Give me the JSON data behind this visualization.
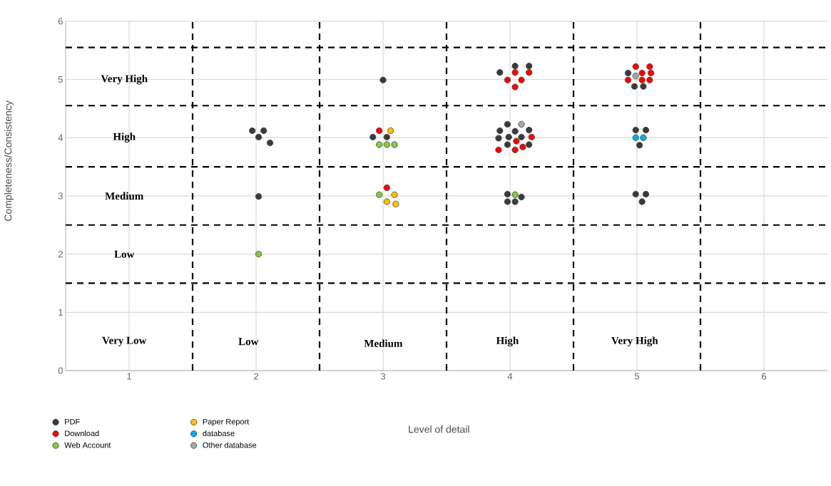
{
  "chart_data": {
    "type": "scatter",
    "xlabel": "Level of detail",
    "ylabel": "Completeness/Consistency",
    "xlim": [
      0.5,
      6.5
    ],
    "ylim": [
      0,
      6
    ],
    "xticks": [
      1,
      2,
      3,
      4,
      5,
      6
    ],
    "yticks": [
      0,
      1,
      2,
      3,
      4,
      5,
      6
    ],
    "grid": true,
    "legend": "bottom",
    "marker": "circle",
    "series": [
      {
        "name": "PDF",
        "color": "#3a3a3a",
        "x": [
          1.97,
          2.06,
          2.02,
          2.11,
          2.02,
          3.0,
          2.92,
          3.03,
          3.92,
          4.04,
          4.15,
          3.98,
          3.92,
          4.04,
          4.15,
          3.91,
          3.99,
          4.09,
          3.98,
          4.15,
          3.98,
          4.09,
          3.98,
          4.04,
          4.93,
          4.98,
          5.05,
          4.99,
          5.07,
          5.02,
          4.99,
          5.07,
          5.04
        ],
        "values": [
          4.12,
          4.12,
          4.01,
          3.91,
          2.99,
          4.99,
          4.01,
          4.01,
          5.12,
          5.23,
          5.23,
          4.23,
          4.12,
          4.11,
          4.13,
          3.99,
          4.01,
          4.01,
          3.88,
          3.88,
          3.03,
          2.98,
          2.9,
          2.9,
          5.11,
          4.88,
          4.88,
          4.13,
          4.13,
          3.87,
          3.03,
          3.03,
          2.9
        ]
      },
      {
        "name": "Download",
        "color": "#ff0000",
        "x": [
          2.97,
          3.03,
          4.04,
          4.15,
          3.98,
          4.09,
          4.04,
          4.17,
          4.05,
          3.91,
          4.04,
          4.1,
          4.99,
          5.1,
          5.04,
          5.11,
          4.93,
          5.04,
          5.1
        ],
        "values": [
          4.12,
          3.14,
          5.12,
          5.12,
          4.99,
          4.99,
          4.87,
          4.01,
          3.94,
          3.79,
          3.79,
          3.84,
          5.22,
          5.22,
          5.11,
          5.11,
          4.99,
          4.99,
          4.99
        ]
      },
      {
        "name": "Web Account",
        "color": "#8dc63f",
        "x": [
          2.02,
          2.97,
          3.03,
          3.09,
          2.97,
          4.04
        ],
        "values": [
          2.0,
          3.88,
          3.88,
          3.88,
          3.02,
          3.02
        ]
      },
      {
        "name": "Paper Report",
        "color": "#ffc000",
        "x": [
          3.06,
          3.09,
          3.03,
          3.1
        ],
        "values": [
          4.12,
          3.02,
          2.9,
          2.86
        ]
      },
      {
        "name": "database",
        "color": "#00b0f0",
        "x": [
          4.99,
          5.05
        ],
        "values": [
          4.0,
          4.0
        ]
      },
      {
        "name": "Other database",
        "color": "#a6a6a6",
        "x": [
          4.09,
          4.99
        ],
        "values": [
          4.23,
          5.06
        ]
      }
    ],
    "ref_lines": [
      {
        "axis": "y",
        "value": 5.55,
        "color": "#000000",
        "line_style": "dashed"
      },
      {
        "axis": "y",
        "value": 4.55,
        "color": "#000000",
        "line_style": "dashed"
      },
      {
        "axis": "y",
        "value": 3.5,
        "color": "#000000",
        "line_style": "dashed"
      },
      {
        "axis": "y",
        "value": 2.5,
        "color": "#000000",
        "line_style": "dashed"
      },
      {
        "axis": "y",
        "value": 1.5,
        "color": "#000000",
        "line_style": "dashed"
      },
      {
        "axis": "x",
        "value": 1.5,
        "color": "#000000",
        "line_style": "dashed"
      },
      {
        "axis": "x",
        "value": 2.5,
        "color": "#000000",
        "line_style": "dashed"
      },
      {
        "axis": "x",
        "value": 3.5,
        "color": "#000000",
        "line_style": "dashed"
      },
      {
        "axis": "x",
        "value": 4.5,
        "color": "#000000",
        "line_style": "dashed"
      },
      {
        "axis": "x",
        "value": 5.5,
        "color": "#000000",
        "line_style": "dashed"
      }
    ],
    "annotations": [
      "Very High",
      "High",
      "Medium",
      "Low",
      "Very Low",
      "Low",
      "Medium",
      "High",
      "Very High"
    ]
  }
}
